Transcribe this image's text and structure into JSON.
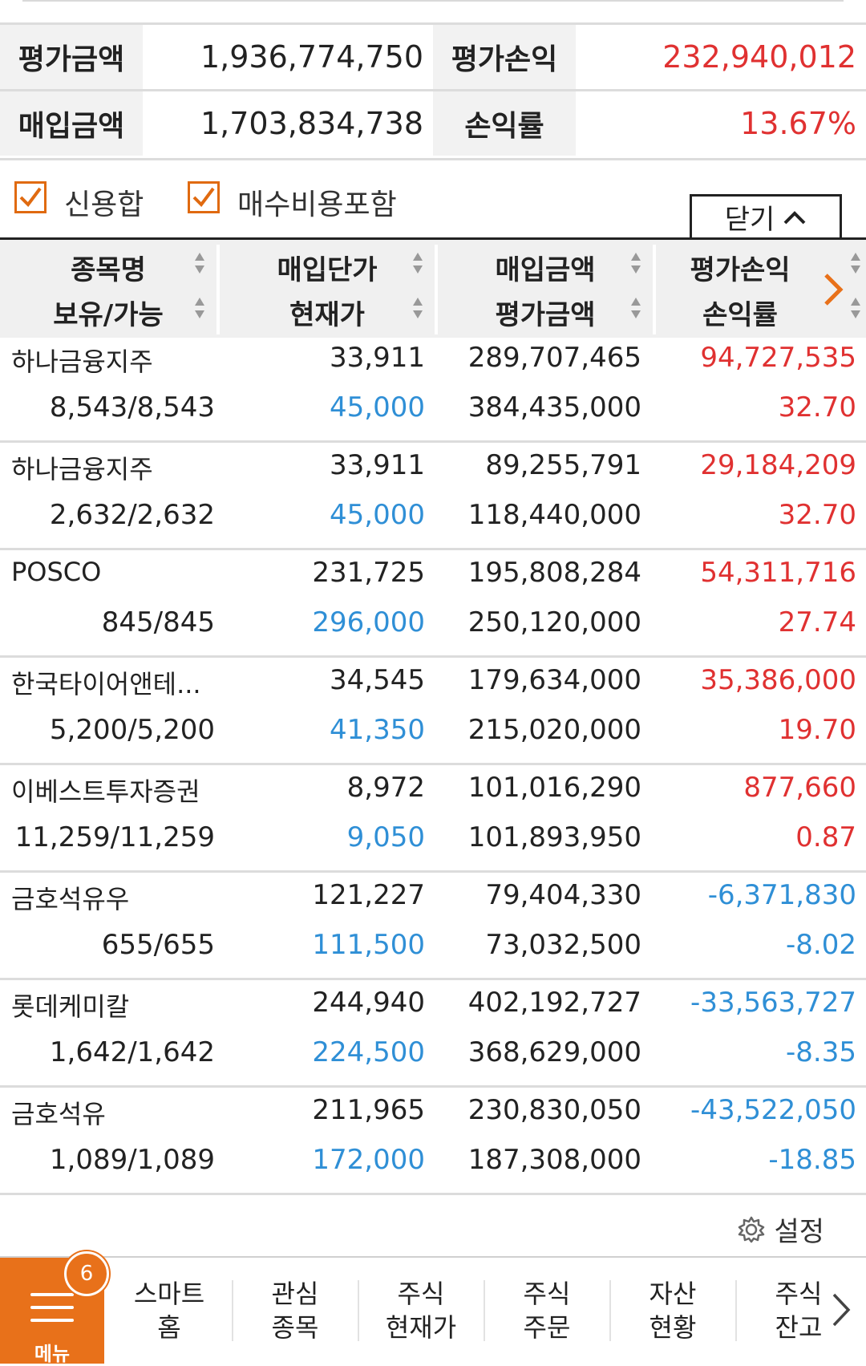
{
  "summary": {
    "eval_amount_label": "평가금액",
    "eval_amount_value": "1,936,774,750",
    "eval_pl_label": "평가손익",
    "eval_pl_value": "232,940,012",
    "buy_amount_label": "매입금액",
    "buy_amount_value": "1,703,834,738",
    "return_label": "손익률",
    "return_value": "13.67%"
  },
  "options": {
    "credit_sum_label": "신용합",
    "credit_sum_checked": true,
    "include_fee_label": "매수비용포함",
    "include_fee_checked": true,
    "close_label": "닫기"
  },
  "table": {
    "headers": {
      "col1_top": "종목명",
      "col1_bot": "보유/가능",
      "col2_top": "매입단가",
      "col2_bot": "현재가",
      "col3_top": "매입금액",
      "col3_bot": "평가금액",
      "col4_top": "평가손익",
      "col4_bot": "손익률"
    },
    "rows": [
      {
        "name": "하나금융지주",
        "qty": "8,543/8,543",
        "avg": "33,911",
        "cur": "45,000",
        "buy": "289,707,465",
        "eval": "384,435,000",
        "pl": "94,727,535",
        "rate": "32.70",
        "sign": "up"
      },
      {
        "name": "하나금융지주",
        "qty": "2,632/2,632",
        "avg": "33,911",
        "cur": "45,000",
        "buy": "89,255,791",
        "eval": "118,440,000",
        "pl": "29,184,209",
        "rate": "32.70",
        "sign": "up"
      },
      {
        "name": "POSCO",
        "qty": "845/845",
        "avg": "231,725",
        "cur": "296,000",
        "buy": "195,808,284",
        "eval": "250,120,000",
        "pl": "54,311,716",
        "rate": "27.74",
        "sign": "up"
      },
      {
        "name": "한국타이어앤테...",
        "qty": "5,200/5,200",
        "avg": "34,545",
        "cur": "41,350",
        "buy": "179,634,000",
        "eval": "215,020,000",
        "pl": "35,386,000",
        "rate": "19.70",
        "sign": "up"
      },
      {
        "name": "이베스트투자증권",
        "qty": "11,259/11,259",
        "avg": "8,972",
        "cur": "9,050",
        "buy": "101,016,290",
        "eval": "101,893,950",
        "pl": "877,660",
        "rate": "0.87",
        "sign": "up"
      },
      {
        "name": "금호석유우",
        "qty": "655/655",
        "avg": "121,227",
        "cur": "111,500",
        "buy": "79,404,330",
        "eval": "73,032,500",
        "pl": "-6,371,830",
        "rate": "-8.02",
        "sign": "down"
      },
      {
        "name": "롯데케미칼",
        "qty": "1,642/1,642",
        "avg": "244,940",
        "cur": "224,500",
        "buy": "402,192,727",
        "eval": "368,629,000",
        "pl": "-33,563,727",
        "rate": "-8.35",
        "sign": "down"
      },
      {
        "name": "금호석유",
        "qty": "1,089/1,089",
        "avg": "211,965",
        "cur": "172,000",
        "buy": "230,830,050",
        "eval": "187,308,000",
        "pl": "-43,522,050",
        "rate": "-18.85",
        "sign": "down"
      }
    ]
  },
  "settings_label": "설정",
  "nav": {
    "menu_label": "메뉴",
    "badge": "6",
    "items": [
      {
        "l1": "스마트",
        "l2": "홈"
      },
      {
        "l1": "관심",
        "l2": "종목"
      },
      {
        "l1": "주식",
        "l2": "현재가"
      },
      {
        "l1": "주식",
        "l2": "주문"
      },
      {
        "l1": "자산",
        "l2": "현황"
      },
      {
        "l1": "주식",
        "l2": "잔고"
      }
    ]
  },
  "colors": {
    "accent": "#e8711a",
    "up": "#e03131",
    "down": "#2f8fd6"
  }
}
